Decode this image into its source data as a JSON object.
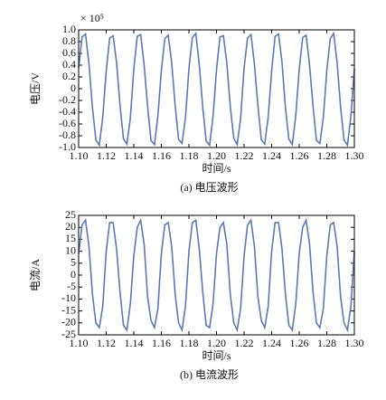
{
  "chart_data": [
    {
      "type": "line",
      "ylabel": "电压/V",
      "xlabel": "时间/s",
      "caption": "(a) 电压波形",
      "multiplier": "× 10⁵",
      "xlim": [
        1.1,
        1.3
      ],
      "ylim": [
        -1,
        1
      ],
      "xticks": [
        {
          "value": 1.1,
          "label": "1.10"
        },
        1.12,
        1.14,
        1.16,
        1.18,
        {
          "value": 1.2,
          "label": "1.20"
        },
        1.22,
        1.24,
        1.26,
        1.28,
        {
          "value": 1.3,
          "label": "1.30"
        }
      ],
      "yticks": [
        {
          "value": 1,
          "label": "1.0"
        },
        0.8,
        0.6,
        0.4,
        0.2,
        0,
        -0.2,
        -0.4,
        -0.6,
        -0.8,
        {
          "value": -1,
          "label": "-1.0"
        }
      ],
      "x": [
        1.1,
        1.1025,
        1.105,
        1.1075,
        1.11,
        1.1125,
        1.115,
        1.1175,
        1.12,
        1.1225,
        1.125,
        1.1275,
        1.13,
        1.1325,
        1.135,
        1.1375,
        1.14,
        1.1425,
        1.145,
        1.1475,
        1.15,
        1.1525,
        1.155,
        1.1575,
        1.16,
        1.1625,
        1.165,
        1.1675,
        1.17,
        1.1725,
        1.175,
        1.1775,
        1.18,
        1.1825,
        1.185,
        1.1875,
        1.19,
        1.1925,
        1.195,
        1.1975,
        1.2,
        1.2025,
        1.205,
        1.2075,
        1.21,
        1.2125,
        1.215,
        1.2175,
        1.22,
        1.2225,
        1.225,
        1.2275,
        1.23,
        1.2325,
        1.235,
        1.2375,
        1.24,
        1.2425,
        1.245,
        1.2475,
        1.25,
        1.2525,
        1.255,
        1.2575,
        1.26,
        1.2625,
        1.265,
        1.2675,
        1.27,
        1.2725,
        1.275,
        1.2775,
        1.28,
        1.2825,
        1.285,
        1.2875,
        1.29,
        1.2925,
        1.295,
        1.2975,
        1.3
      ],
      "series": [
        {
          "name": "电压",
          "color": "#5a78b8",
          "values": [
            0.35,
            0.88,
            0.93,
            0.42,
            -0.32,
            -0.87,
            -0.96,
            -0.48,
            0.3,
            0.86,
            0.9,
            0.45,
            -0.28,
            -0.85,
            -0.94,
            -0.5,
            0.33,
            0.89,
            0.92,
            0.4,
            -0.3,
            -0.88,
            -0.95,
            -0.46,
            0.31,
            0.85,
            0.91,
            0.44,
            -0.29,
            -0.86,
            -0.93,
            -0.49,
            0.34,
            0.87,
            0.94,
            0.41,
            -0.31,
            -0.89,
            -0.96,
            -0.47,
            0.32,
            0.88,
            0.9,
            0.43,
            -0.3,
            -0.84,
            -0.95,
            -0.5,
            0.35,
            0.86,
            0.92,
            0.42,
            -0.28,
            -0.87,
            -0.94,
            -0.48,
            0.3,
            0.89,
            0.93,
            0.45,
            -0.32,
            -0.86,
            -0.95,
            -0.46,
            0.33,
            0.87,
            0.91,
            0.4,
            -0.29,
            -0.88,
            -0.93,
            -0.49,
            0.31,
            0.85,
            0.94,
            0.44,
            -0.31,
            -0.87,
            -0.96,
            -0.47,
            0.34
          ]
        }
      ]
    },
    {
      "type": "line",
      "ylabel": "电流/A",
      "xlabel": "时间/s",
      "caption": "(b) 电流波形",
      "xlim": [
        1.1,
        1.3
      ],
      "ylim": [
        -25,
        25
      ],
      "xticks": [
        {
          "value": 1.1,
          "label": "1.10"
        },
        1.12,
        1.14,
        1.16,
        1.18,
        {
          "value": 1.2,
          "label": "1.20"
        },
        1.22,
        1.24,
        1.26,
        1.28,
        {
          "value": 1.3,
          "label": "1.30"
        }
      ],
      "yticks": [
        25,
        20,
        15,
        10,
        5,
        0,
        -5,
        -10,
        -15,
        -20,
        -25
      ],
      "x": [
        1.1,
        1.1025,
        1.105,
        1.1075,
        1.11,
        1.1125,
        1.115,
        1.1175,
        1.12,
        1.1225,
        1.125,
        1.1275,
        1.13,
        1.1325,
        1.135,
        1.1375,
        1.14,
        1.1425,
        1.145,
        1.1475,
        1.15,
        1.1525,
        1.155,
        1.1575,
        1.16,
        1.1625,
        1.165,
        1.1675,
        1.17,
        1.1725,
        1.175,
        1.1775,
        1.18,
        1.1825,
        1.185,
        1.1875,
        1.19,
        1.1925,
        1.195,
        1.1975,
        1.2,
        1.2025,
        1.205,
        1.2075,
        1.21,
        1.2125,
        1.215,
        1.2175,
        1.22,
        1.2225,
        1.225,
        1.2275,
        1.23,
        1.2325,
        1.235,
        1.2375,
        1.24,
        1.2425,
        1.245,
        1.2475,
        1.25,
        1.2525,
        1.255,
        1.2575,
        1.26,
        1.2625,
        1.265,
        1.2675,
        1.27,
        1.2725,
        1.275,
        1.2775,
        1.28,
        1.2825,
        1.285,
        1.2875,
        1.29,
        1.2925,
        1.295,
        1.2975,
        1.3
      ],
      "series": [
        {
          "name": "电流",
          "color": "#5a78b8",
          "values": [
            9,
            21,
            23,
            12,
            -8,
            -20,
            -22,
            -13,
            10,
            22,
            22,
            11,
            -7,
            -21,
            -23,
            -12,
            8,
            20,
            23,
            13,
            -9,
            -19,
            -22,
            -14,
            9,
            21,
            22,
            12,
            -8,
            -20,
            -23,
            -13,
            10,
            22,
            23,
            11,
            -7,
            -21,
            -22,
            -12,
            9,
            20,
            22,
            13,
            -8,
            -20,
            -23,
            -14,
            8,
            21,
            23,
            12,
            -9,
            -19,
            -22,
            -13,
            10,
            22,
            22,
            11,
            -8,
            -21,
            -23,
            -12,
            9,
            20,
            23,
            13,
            -7,
            -20,
            -22,
            -14,
            8,
            21,
            22,
            12,
            -9,
            -20,
            -23,
            -13,
            10
          ]
        }
      ]
    }
  ]
}
